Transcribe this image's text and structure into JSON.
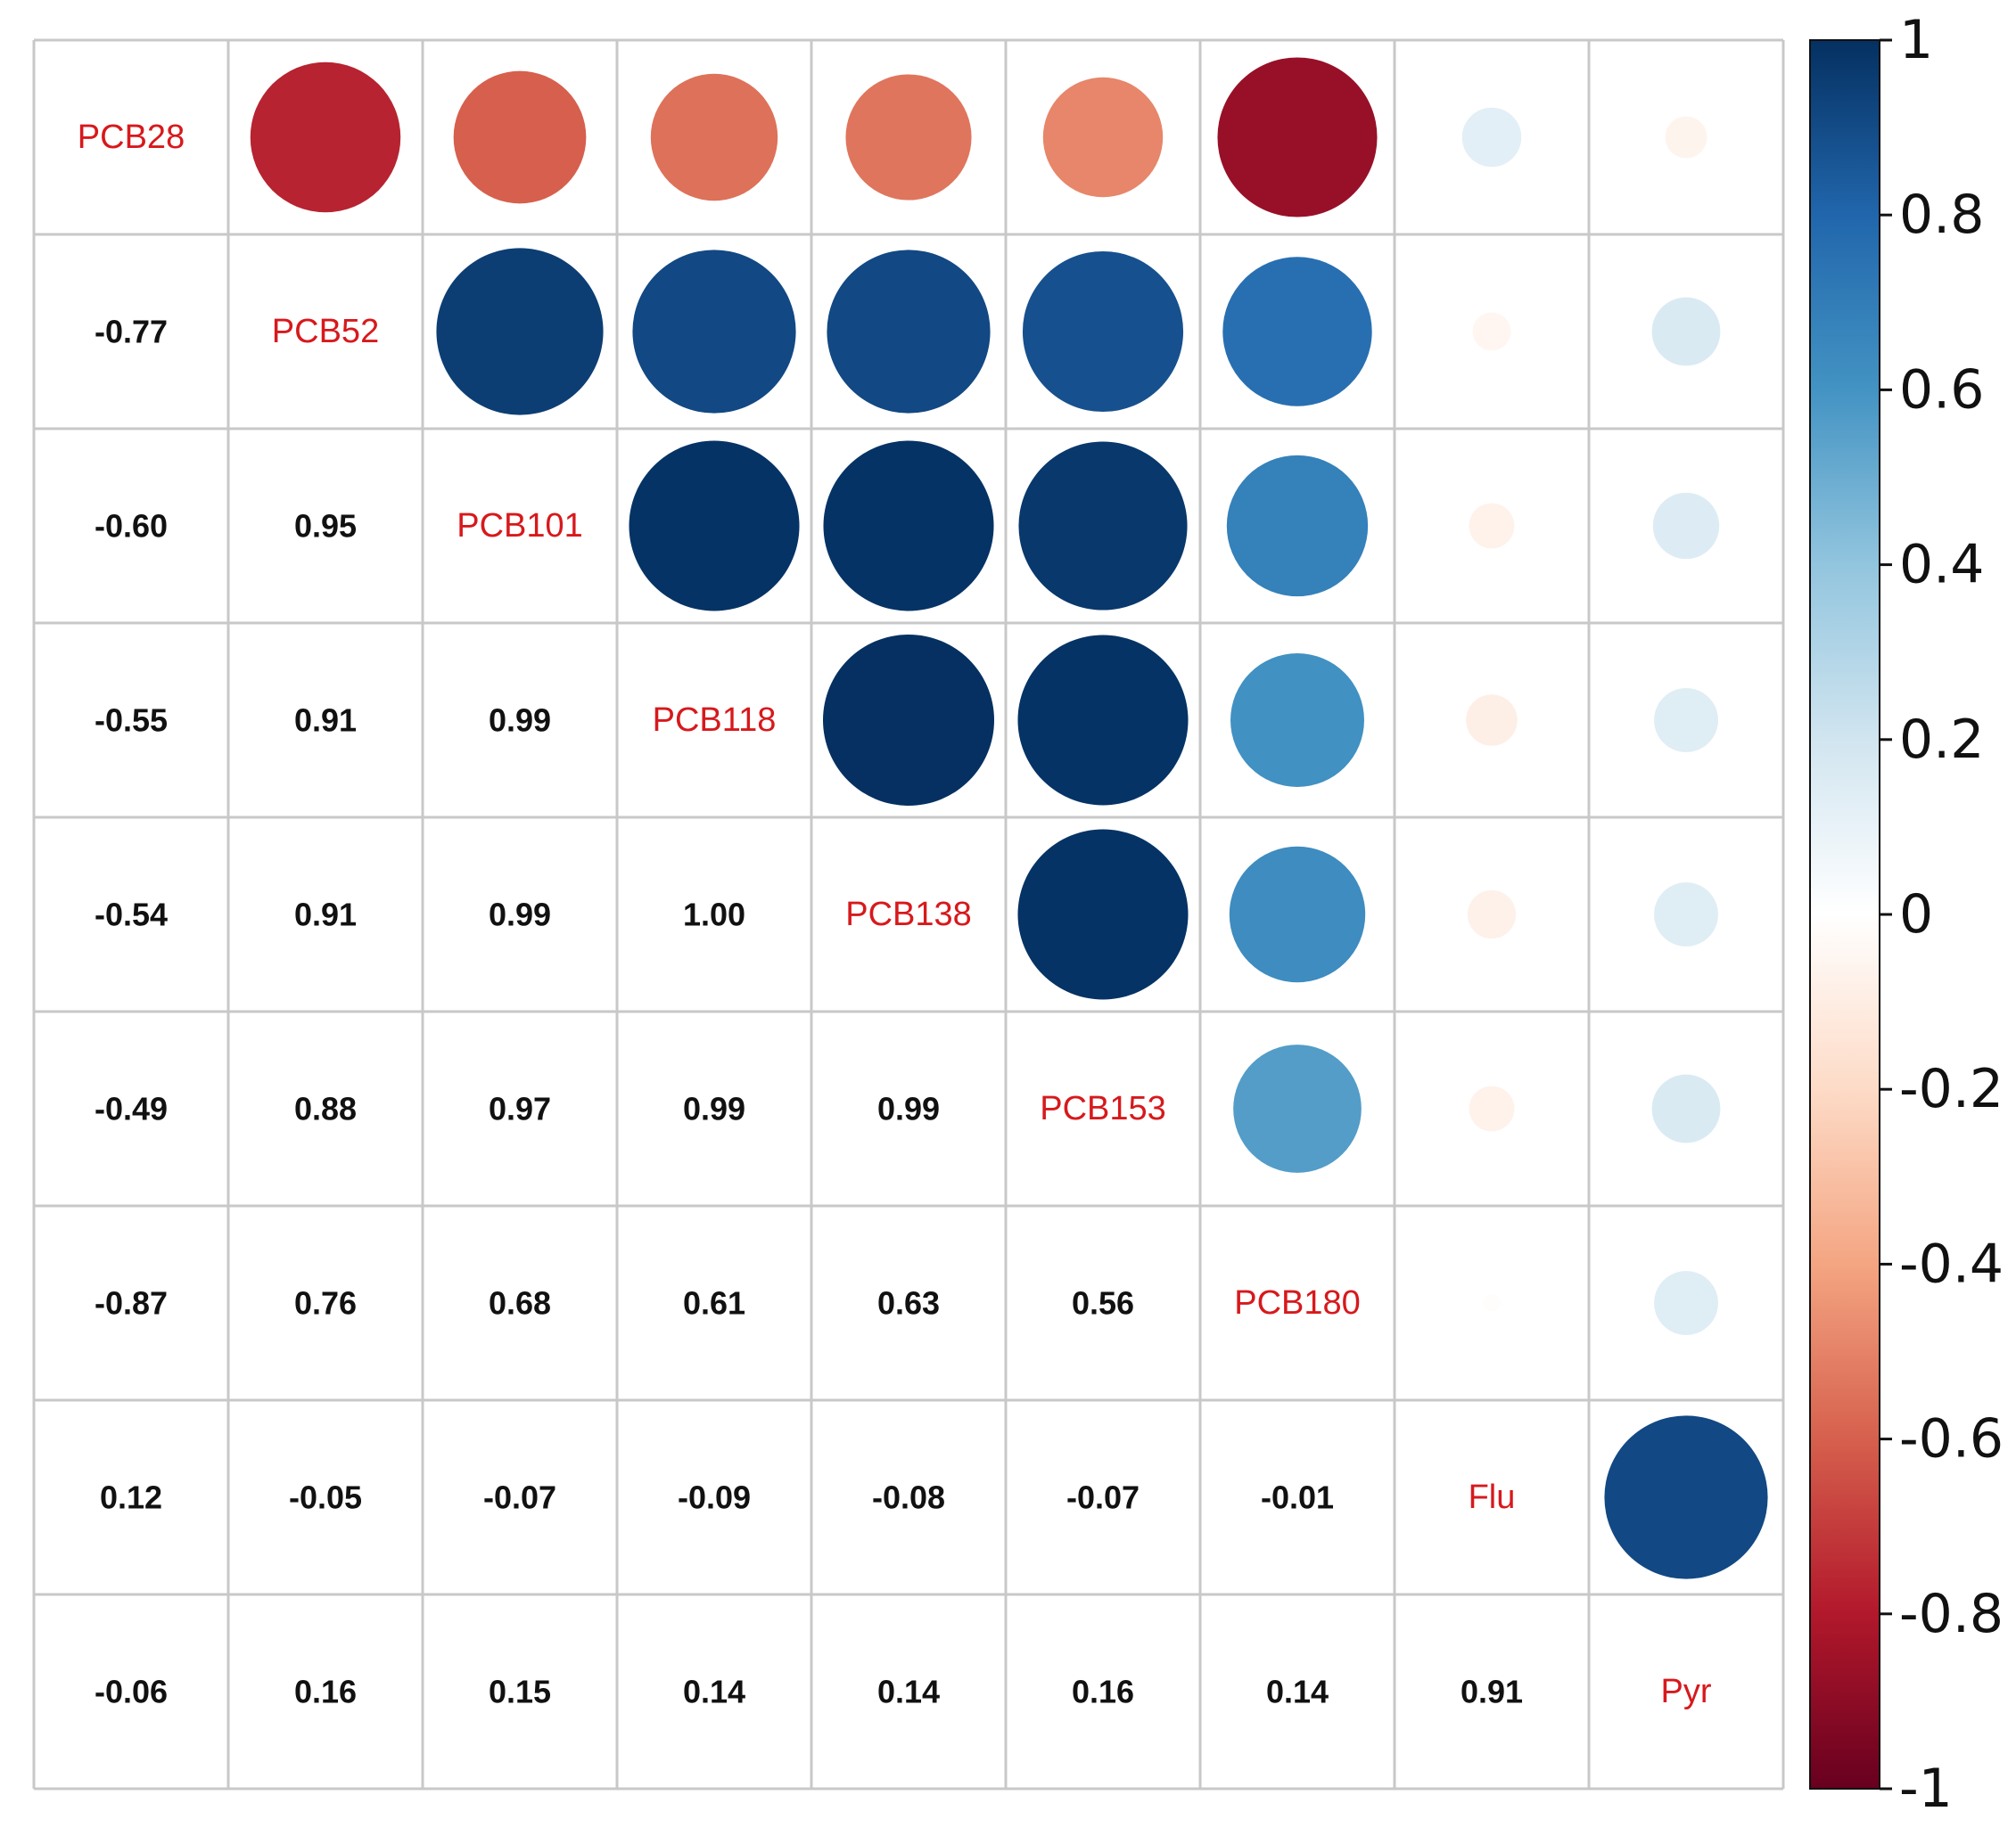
{
  "chart_data": {
    "type": "heatmap",
    "title": "",
    "variables": [
      "PCB28",
      "PCB52",
      "PCB101",
      "PCB118",
      "PCB138",
      "PCB153",
      "PCB180",
      "Flu",
      "Pyr"
    ],
    "matrix": [
      [
        1.0,
        -0.77,
        -0.6,
        -0.55,
        -0.54,
        -0.49,
        -0.87,
        0.12,
        -0.06
      ],
      [
        -0.77,
        1.0,
        0.95,
        0.91,
        0.91,
        0.88,
        0.76,
        -0.05,
        0.16
      ],
      [
        -0.6,
        0.95,
        1.0,
        0.99,
        0.99,
        0.97,
        0.68,
        -0.07,
        0.15
      ],
      [
        -0.55,
        0.91,
        0.99,
        1.0,
        1.0,
        0.99,
        0.61,
        -0.09,
        0.14
      ],
      [
        -0.54,
        0.91,
        0.99,
        1.0,
        1.0,
        0.99,
        0.63,
        -0.08,
        0.14
      ],
      [
        -0.49,
        0.88,
        0.97,
        0.99,
        0.99,
        1.0,
        0.56,
        -0.07,
        0.16
      ],
      [
        -0.87,
        0.76,
        0.68,
        0.61,
        0.63,
        0.56,
        1.0,
        -0.01,
        0.14
      ],
      [
        0.12,
        -0.05,
        -0.07,
        -0.09,
        -0.08,
        -0.07,
        -0.01,
        1.0,
        0.91
      ],
      [
        -0.06,
        0.16,
        0.15,
        0.14,
        0.14,
        0.16,
        0.14,
        0.91,
        1.0
      ]
    ],
    "lower_triangle": "numbers",
    "upper_triangle": "circles",
    "colorbar": {
      "range": [
        -1,
        1
      ],
      "ticks": [
        1,
        0.8,
        0.6,
        0.4,
        0.2,
        0,
        -0.2,
        -0.4,
        -0.6,
        -0.8,
        -1
      ],
      "tick_labels": [
        "1",
        "0.8",
        "0.6",
        "0.4",
        "0.2",
        "0",
        "-0.2",
        "-0.4",
        "-0.6",
        "-0.8",
        "-1"
      ],
      "colors": [
        "#67001f",
        "#b2182b",
        "#d6604d",
        "#f4a582",
        "#fddbc7",
        "#ffffff",
        "#d1e5f0",
        "#92c5de",
        "#4393c3",
        "#2166ac",
        "#053061"
      ]
    },
    "grid": true,
    "colors": {
      "diagonal_label": "#d7191c",
      "coefficient_text": "#111111",
      "grid_line": "#c8c8c8"
    }
  }
}
